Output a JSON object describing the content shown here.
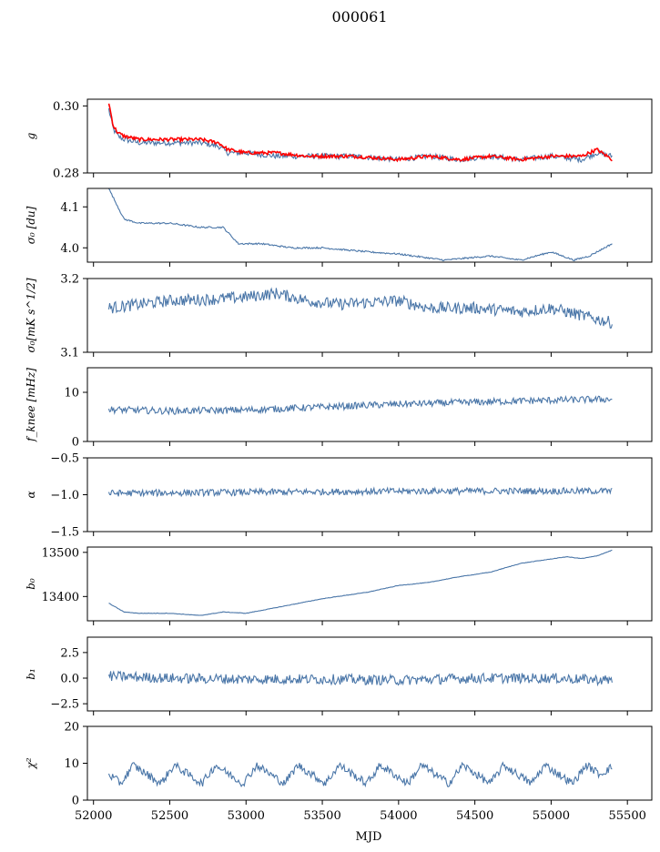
{
  "figure": {
    "title": "000061",
    "xlabel": "MJD"
  },
  "chart_data": [
    {
      "type": "line",
      "ylabel": "g",
      "xlim": [
        51960,
        55660
      ],
      "ylim": [
        0.28,
        0.302
      ],
      "yticks": [
        0.28,
        0.3
      ],
      "yticklabels": [
        "0.28",
        "0.30"
      ],
      "xticks": [
        52000,
        52500,
        53000,
        53500,
        54000,
        54500,
        55000,
        55500
      ],
      "xticklabels": [],
      "series": [
        {
          "color": "#4a76a8",
          "noise": 0.0008,
          "x": [
            52100,
            52130,
            52160,
            52200,
            52300,
            52500,
            52700,
            52820,
            52880,
            53000,
            53200,
            53400,
            53700,
            54000,
            54200,
            54400,
            54600,
            54800,
            55000,
            55200,
            55300,
            55400
          ],
          "y": [
            0.299,
            0.293,
            0.291,
            0.29,
            0.289,
            0.289,
            0.289,
            0.288,
            0.286,
            0.286,
            0.285,
            0.285,
            0.285,
            0.284,
            0.285,
            0.284,
            0.285,
            0.284,
            0.285,
            0.284,
            0.286,
            0.285
          ]
        },
        {
          "color": "#ff0000",
          "noise": 0.0005,
          "x": [
            52100,
            52130,
            52160,
            52200,
            52300,
            52500,
            52700,
            52820,
            52880,
            53000,
            53200,
            53400,
            53700,
            54000,
            54200,
            54400,
            54600,
            54800,
            55000,
            55200,
            55300,
            55400
          ],
          "y": [
            0.301,
            0.294,
            0.292,
            0.291,
            0.29,
            0.29,
            0.29,
            0.289,
            0.287,
            0.286,
            0.286,
            0.285,
            0.285,
            0.284,
            0.285,
            0.284,
            0.285,
            0.284,
            0.285,
            0.285,
            0.287,
            0.284
          ]
        }
      ]
    },
    {
      "type": "line",
      "ylabel": "σ₀ [du]",
      "xlim": [
        51960,
        55660
      ],
      "ylim": [
        3.965,
        4.145
      ],
      "yticks": [
        4.0,
        4.1
      ],
      "yticklabels": [
        "4.0",
        "4.1"
      ],
      "xticks": [
        52000,
        52500,
        53000,
        53500,
        54000,
        54500,
        55000,
        55500
      ],
      "xticklabels": [],
      "series": [
        {
          "color": "#4a76a8",
          "noise": 0.002,
          "x": [
            52100,
            52200,
            52300,
            52500,
            52700,
            52850,
            52950,
            53100,
            53300,
            53500,
            53800,
            54000,
            54300,
            54600,
            54800,
            55000,
            55150,
            55250,
            55400
          ],
          "y": [
            4.145,
            4.07,
            4.06,
            4.06,
            4.05,
            4.05,
            4.01,
            4.01,
            4.0,
            4.0,
            3.99,
            3.985,
            3.97,
            3.98,
            3.97,
            3.99,
            3.97,
            3.98,
            4.01
          ]
        }
      ]
    },
    {
      "type": "line",
      "ylabel": "σ₀[mK s^1/2]",
      "xlim": [
        51960,
        55660
      ],
      "ylim": [
        3.1,
        3.2
      ],
      "yticks": [
        3.1,
        3.2
      ],
      "yticklabels": [
        "3.1",
        "3.2"
      ],
      "xticks": [
        52000,
        52500,
        53000,
        53500,
        54000,
        54500,
        55000,
        55500
      ],
      "xticklabels": [],
      "series": [
        {
          "color": "#4a76a8",
          "noise": 0.008,
          "x": [
            52100,
            52300,
            52500,
            52800,
            53000,
            53200,
            53400,
            53600,
            54000,
            54200,
            54500,
            54800,
            55000,
            55200,
            55400
          ],
          "y": [
            3.16,
            3.165,
            3.17,
            3.172,
            3.175,
            3.18,
            3.17,
            3.165,
            3.17,
            3.16,
            3.16,
            3.155,
            3.16,
            3.15,
            3.14
          ]
        }
      ]
    },
    {
      "type": "line",
      "ylabel": "f_knee [mHz]",
      "xlim": [
        51960,
        55660
      ],
      "ylim": [
        0,
        15
      ],
      "yticks": [
        0,
        10
      ],
      "yticklabels": [
        "0",
        "10"
      ],
      "xticks": [
        52000,
        52500,
        53000,
        53500,
        54000,
        54500,
        55000,
        55500
      ],
      "xticklabels": [],
      "series": [
        {
          "color": "#4a76a8",
          "noise": 0.7,
          "x": [
            52100,
            52500,
            53000,
            53500,
            54000,
            54500,
            55000,
            55400
          ],
          "y": [
            6.5,
            6.2,
            6.4,
            7.0,
            7.6,
            8.0,
            8.4,
            8.6
          ]
        }
      ]
    },
    {
      "type": "line",
      "ylabel": "α",
      "xlim": [
        51960,
        55660
      ],
      "ylim": [
        -1.5,
        -0.5
      ],
      "yticks": [
        -1.5,
        -1.0,
        -0.5
      ],
      "yticklabels": [
        "−1.5",
        "−1.0",
        "−0.5"
      ],
      "xticks": [
        52000,
        52500,
        53000,
        53500,
        54000,
        54500,
        55000,
        55500
      ],
      "xticklabels": [],
      "series": [
        {
          "color": "#4a76a8",
          "noise": 0.045,
          "x": [
            52100,
            52800,
            53500,
            54200,
            54900,
            55400
          ],
          "y": [
            -0.98,
            -0.97,
            -0.96,
            -0.95,
            -0.95,
            -0.95
          ]
        }
      ]
    },
    {
      "type": "line",
      "ylabel": "b₀",
      "xlim": [
        51960,
        55660
      ],
      "ylim": [
        13345,
        13512
      ],
      "yticks": [
        13400,
        13500
      ],
      "yticklabels": [
        "13400",
        "13500"
      ],
      "xticks": [
        52000,
        52500,
        53000,
        53500,
        54000,
        54500,
        55000,
        55500
      ],
      "xticklabels": [],
      "series": [
        {
          "color": "#4a76a8",
          "noise": 0.5,
          "x": [
            52100,
            52200,
            52300,
            52500,
            52700,
            52850,
            53000,
            53200,
            53500,
            53800,
            54000,
            54200,
            54400,
            54600,
            54800,
            55000,
            55100,
            55200,
            55300,
            55400
          ],
          "y": [
            13385,
            13365,
            13362,
            13362,
            13357,
            13365,
            13362,
            13375,
            13395,
            13410,
            13425,
            13432,
            13445,
            13455,
            13475,
            13485,
            13490,
            13486,
            13492,
            13505
          ]
        }
      ]
    },
    {
      "type": "line",
      "ylabel": "b₁",
      "xlim": [
        51960,
        55660
      ],
      "ylim": [
        -3.2,
        4.0
      ],
      "yticks": [
        -2.5,
        0.0,
        2.5
      ],
      "yticklabels": [
        "−2.5",
        "0.0",
        "2.5"
      ],
      "xticks": [
        52000,
        52500,
        53000,
        53500,
        54000,
        54500,
        55000,
        55500
      ],
      "xticklabels": [],
      "series": [
        {
          "color": "#4a76a8",
          "noise": 0.5,
          "x": [
            52100,
            52500,
            53000,
            53500,
            54000,
            54500,
            55000,
            55400
          ],
          "y": [
            0.2,
            0.0,
            -0.1,
            -0.1,
            -0.2,
            0.0,
            0.0,
            -0.2
          ]
        }
      ]
    },
    {
      "type": "line",
      "ylabel": "χ²",
      "xlim": [
        51960,
        55660
      ],
      "ylim": [
        0,
        20
      ],
      "yticks": [
        0,
        10,
        20
      ],
      "yticklabels": [
        "0",
        "10",
        "20"
      ],
      "xticks": [
        52000,
        52500,
        53000,
        53500,
        54000,
        54500,
        55000,
        55500
      ],
      "xticklabels": [
        "52000",
        "52500",
        "53000",
        "53500",
        "54000",
        "54500",
        "55000",
        "55500"
      ],
      "series": [
        {
          "color": "#4a76a8",
          "noise": 1.1,
          "x": [
            52100,
            52180,
            52260,
            52350,
            52440,
            52530,
            52620,
            52710,
            52800,
            52890,
            52980,
            53070,
            53160,
            53250,
            53340,
            53430,
            53520,
            53610,
            53700,
            53790,
            53880,
            53970,
            54060,
            54150,
            54240,
            54330,
            54420,
            54510,
            54600,
            54690,
            54780,
            54870,
            54960,
            55050,
            55140,
            55230,
            55320,
            55400
          ],
          "y": [
            7,
            4.5,
            9.5,
            7,
            4.5,
            9.5,
            7,
            4.5,
            9.5,
            7,
            4.5,
            9.5,
            7,
            4.5,
            9.5,
            7,
            4.5,
            9.5,
            7,
            4.5,
            9.5,
            7,
            4.5,
            9.5,
            7,
            4.5,
            9.5,
            7,
            4.5,
            9.5,
            7,
            4.5,
            9.5,
            7,
            4.5,
            9.5,
            7,
            9
          ]
        }
      ]
    }
  ]
}
